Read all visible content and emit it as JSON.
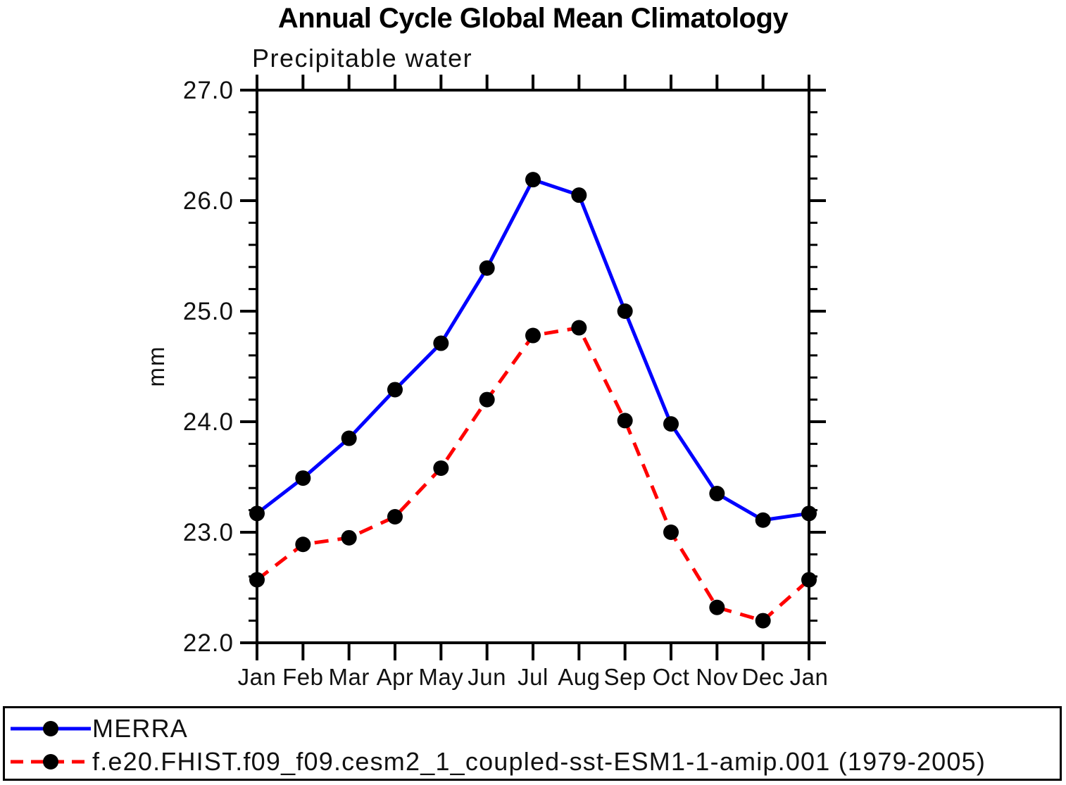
{
  "chart_data": {
    "type": "line",
    "title": "Annual Cycle Global Mean Climatology",
    "subtitle": "Precipitable water",
    "ylabel": "mm",
    "xlabel": "",
    "categories": [
      "Jan",
      "Feb",
      "Mar",
      "Apr",
      "May",
      "Jun",
      "Jul",
      "Aug",
      "Sep",
      "Oct",
      "Nov",
      "Dec",
      "Jan"
    ],
    "ylim": [
      22.0,
      27.0
    ],
    "ytick_major": 1.0,
    "ytick_minor": 0.2,
    "ytick_labels": [
      "22.0",
      "23.0",
      "24.0",
      "25.0",
      "26.0",
      "27.0"
    ],
    "grid": false,
    "legend_position": "bottom",
    "marker": "filled-circle",
    "marker_color": "#000000",
    "axis_color": "#000000",
    "series": [
      {
        "name": "MERRA",
        "color": "#0000ff",
        "line_style": "solid",
        "values": [
          23.17,
          23.49,
          23.85,
          24.29,
          24.71,
          25.39,
          26.19,
          26.05,
          25.0,
          23.98,
          23.35,
          23.11,
          23.17
        ]
      },
      {
        "name": "f.e20.FHIST.f09_f09.cesm2_1_coupled-sst-ESM1-1-amip.001 (1979-2005)",
        "color": "#ff0000",
        "line_style": "dashed",
        "values": [
          22.57,
          22.89,
          22.95,
          23.14,
          23.58,
          24.2,
          24.78,
          24.85,
          24.01,
          23.0,
          22.32,
          22.2,
          22.57
        ]
      }
    ]
  }
}
